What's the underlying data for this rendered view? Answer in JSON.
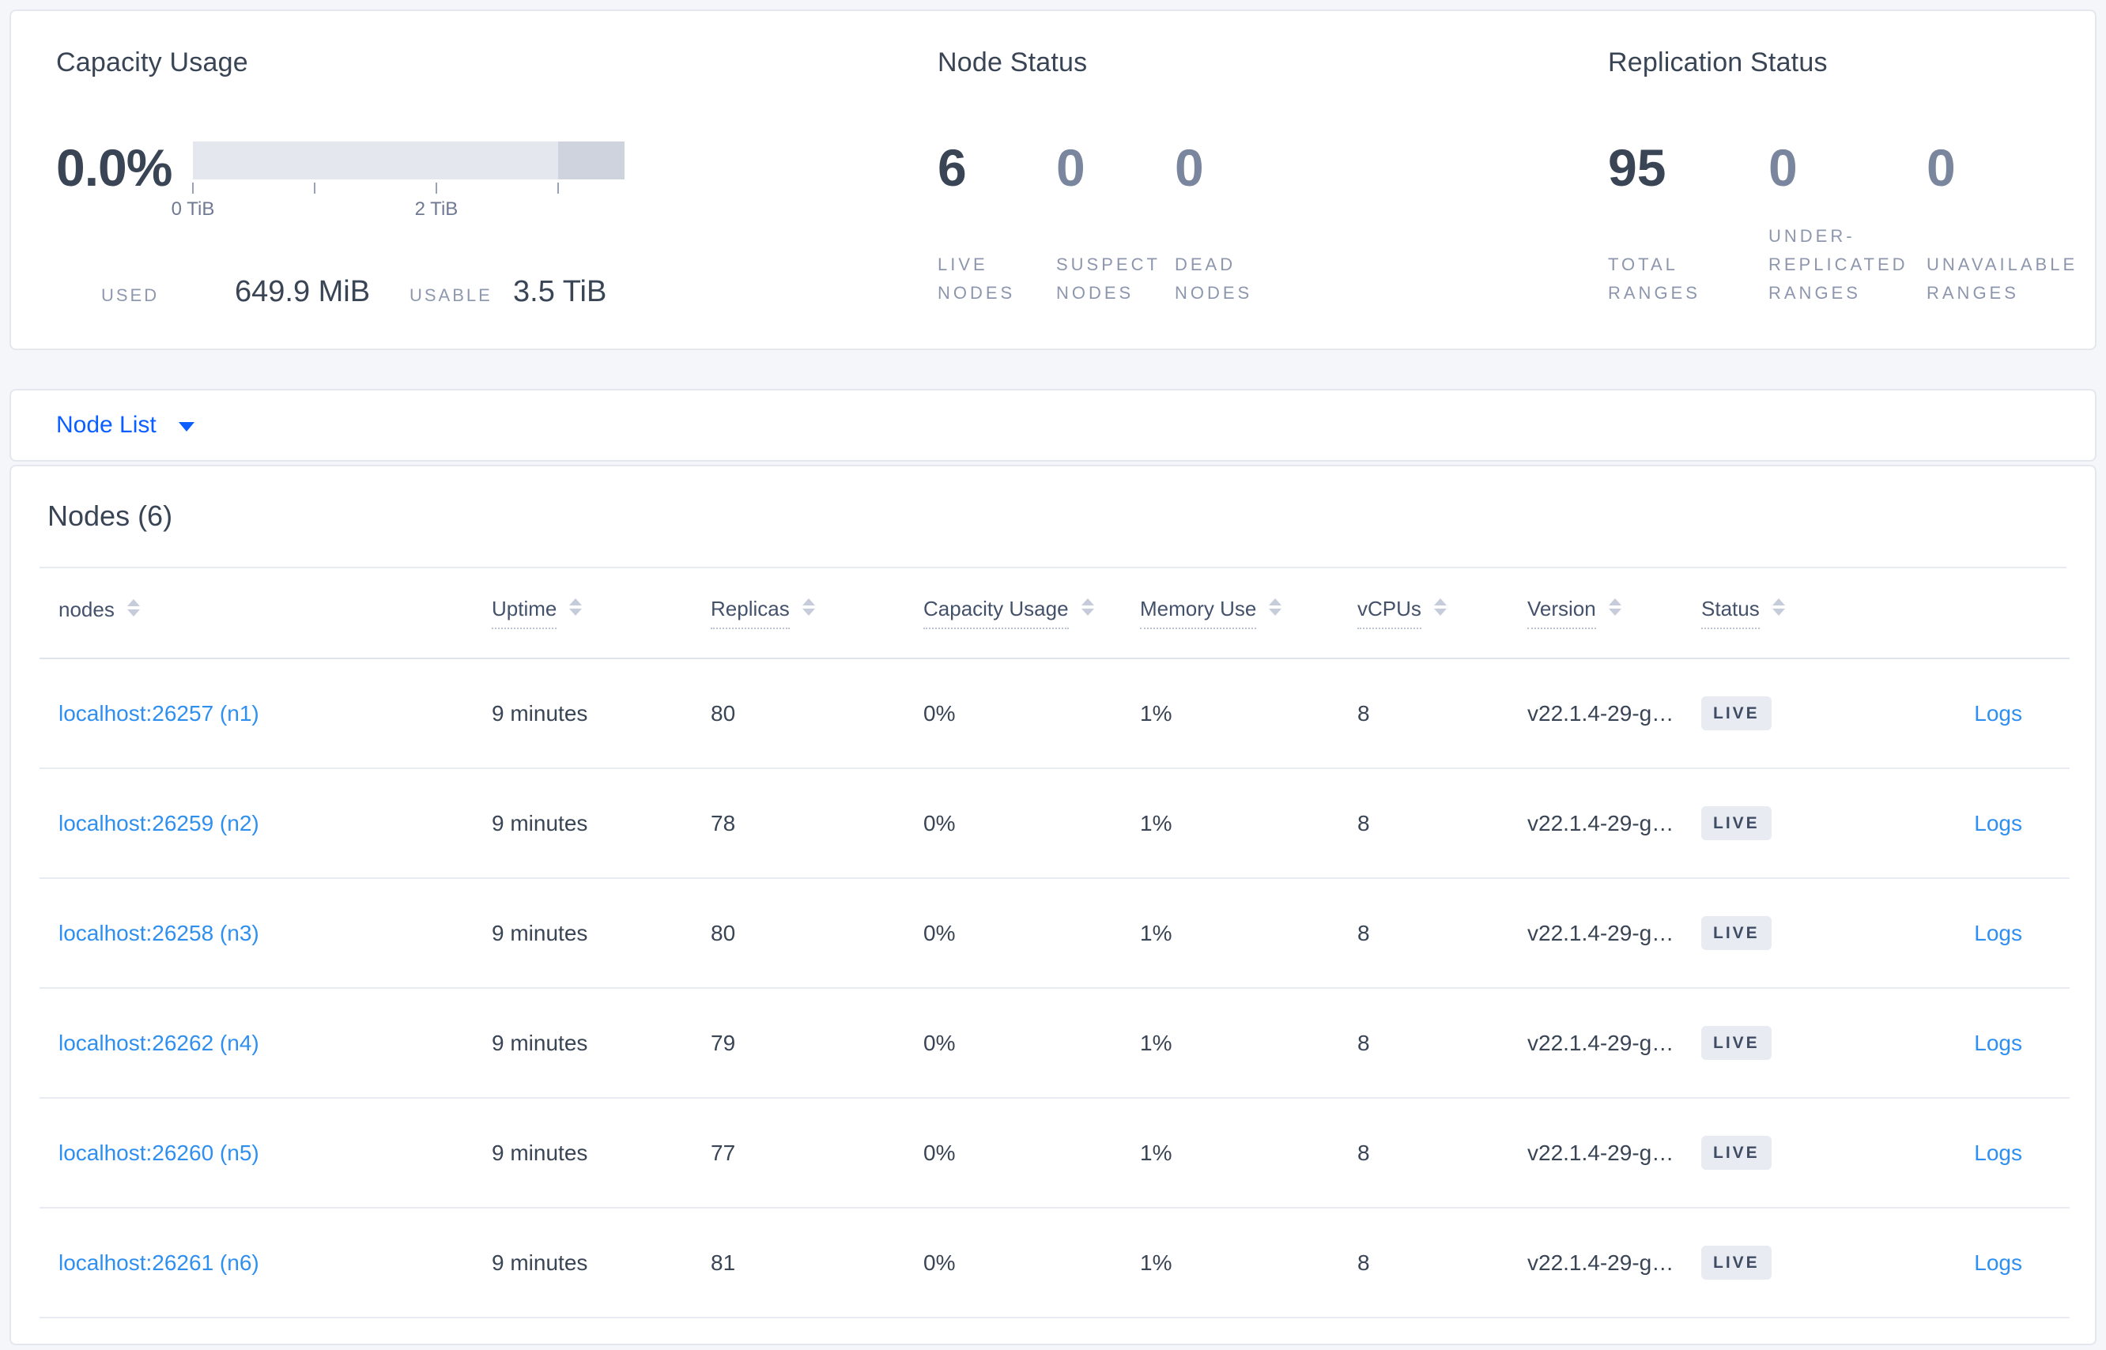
{
  "colors": {
    "accent_link": "#2f8fef",
    "selector_blue": "#0b5eff",
    "heading_text": "#394455",
    "muted_label": "#8d96ad",
    "badge_bg": "#e8ebf1",
    "bar_light": "#e4e7ee",
    "bar_dark": "#ced3de"
  },
  "summary": {
    "capacity": {
      "title": "Capacity Usage",
      "used_percent": "0.0%",
      "bar": {
        "segments": [
          {
            "name": "usable-capacity",
            "color": "#e4e7ee",
            "width_pct": 84.6
          },
          {
            "name": "other-capacity",
            "color": "#ced3de",
            "width_pct": 15.4
          }
        ],
        "ticks_pct": [
          0,
          28.2,
          56.4,
          84.6
        ],
        "tick_labels": [
          {
            "text": "0 TiB",
            "pct": 0
          },
          {
            "text": "2 TiB",
            "pct": 56.4
          }
        ]
      },
      "used_label": "USED",
      "used_value": "649.9 MiB",
      "usable_label": "USABLE",
      "usable_value": "3.5 TiB"
    },
    "node_status": {
      "title": "Node Status",
      "metrics": [
        {
          "value": "6",
          "label": "LIVE\nNODES",
          "emphasis": true
        },
        {
          "value": "0",
          "label": "SUSPECT\nNODES",
          "emphasis": false
        },
        {
          "value": "0",
          "label": "DEAD\nNODES",
          "emphasis": false
        }
      ]
    },
    "replication": {
      "title": "Replication Status",
      "metrics": [
        {
          "value": "95",
          "label": "TOTAL\nRANGES",
          "emphasis": true
        },
        {
          "value": "0",
          "label": "UNDER-\nREPLICATED\nRANGES",
          "emphasis": false
        },
        {
          "value": "0",
          "label": "UNAVAILABLE\nRANGES",
          "emphasis": false
        }
      ]
    }
  },
  "view_selector": {
    "label": "Node List"
  },
  "nodes_table": {
    "heading": "Nodes (6)",
    "logs_label": "Logs",
    "columns": [
      {
        "label": "nodes",
        "sortable": true,
        "dotted": false
      },
      {
        "label": "Uptime",
        "sortable": true,
        "dotted": true
      },
      {
        "label": "Replicas",
        "sortable": true,
        "dotted": true
      },
      {
        "label": "Capacity Usage",
        "sortable": true,
        "dotted": true
      },
      {
        "label": "Memory Use",
        "sortable": true,
        "dotted": true
      },
      {
        "label": "vCPUs",
        "sortable": true,
        "dotted": true
      },
      {
        "label": "Version",
        "sortable": true,
        "dotted": true
      },
      {
        "label": "Status",
        "sortable": true,
        "dotted": true
      },
      {
        "label": "",
        "sortable": false,
        "dotted": false
      }
    ],
    "rows": [
      {
        "node": "localhost:26257 (n1)",
        "uptime": "9 minutes",
        "replicas": "80",
        "capacity_usage": "0%",
        "memory_use": "1%",
        "vcpus": "8",
        "version": "v22.1.4-29-g…",
        "status": "LIVE"
      },
      {
        "node": "localhost:26259 (n2)",
        "uptime": "9 minutes",
        "replicas": "78",
        "capacity_usage": "0%",
        "memory_use": "1%",
        "vcpus": "8",
        "version": "v22.1.4-29-g…",
        "status": "LIVE"
      },
      {
        "node": "localhost:26258 (n3)",
        "uptime": "9 minutes",
        "replicas": "80",
        "capacity_usage": "0%",
        "memory_use": "1%",
        "vcpus": "8",
        "version": "v22.1.4-29-g…",
        "status": "LIVE"
      },
      {
        "node": "localhost:26262 (n4)",
        "uptime": "9 minutes",
        "replicas": "79",
        "capacity_usage": "0%",
        "memory_use": "1%",
        "vcpus": "8",
        "version": "v22.1.4-29-g…",
        "status": "LIVE"
      },
      {
        "node": "localhost:26260 (n5)",
        "uptime": "9 minutes",
        "replicas": "77",
        "capacity_usage": "0%",
        "memory_use": "1%",
        "vcpus": "8",
        "version": "v22.1.4-29-g…",
        "status": "LIVE"
      },
      {
        "node": "localhost:26261 (n6)",
        "uptime": "9 minutes",
        "replicas": "81",
        "capacity_usage": "0%",
        "memory_use": "1%",
        "vcpus": "8",
        "version": "v22.1.4-29-g…",
        "status": "LIVE"
      }
    ]
  }
}
